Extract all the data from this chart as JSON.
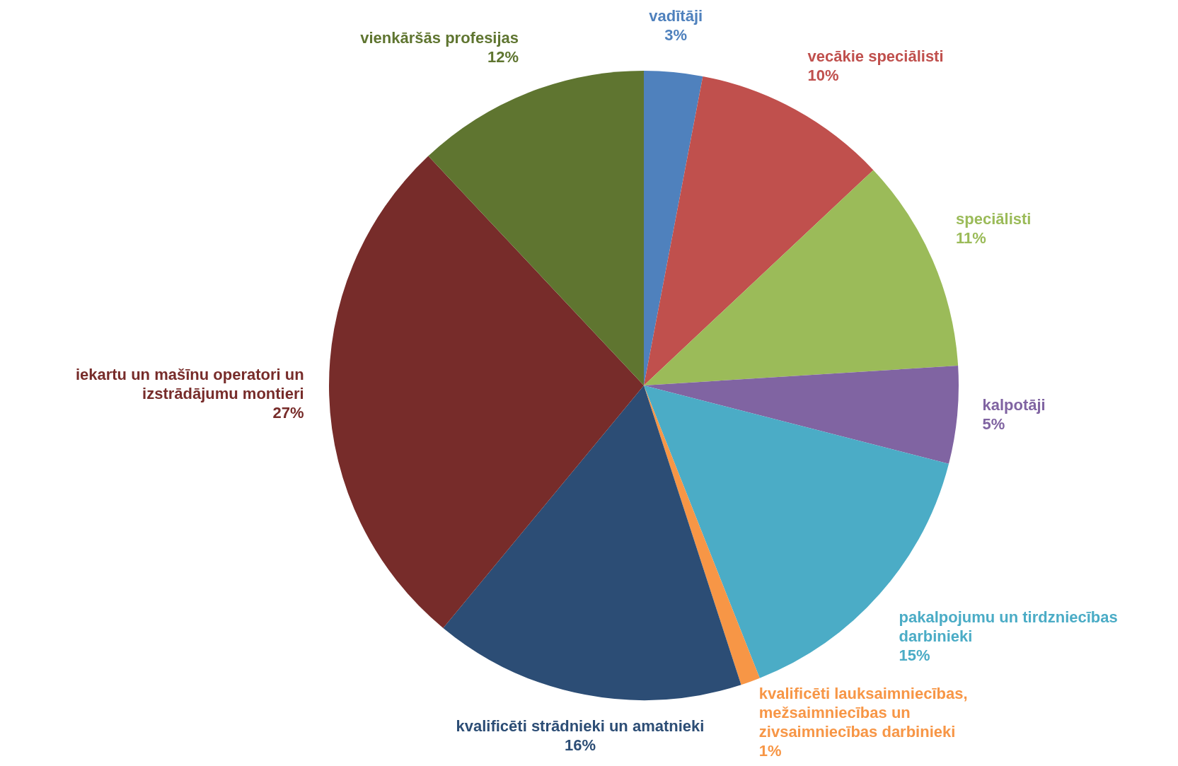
{
  "chart_data": {
    "type": "pie",
    "categories": [
      "vadītāji",
      "vecākie speciālisti",
      "speciālisti",
      "kalpotāji",
      "pakalpojumu un tirdzniecības darbinieki",
      "kvalificēti lauksaimniecības, mežsaimniecības un zivsaimniecības darbinieki",
      "kvalificēti strādnieki un amatnieki",
      "iekartu un mašīnu operatori un izstrādājumu montieri",
      "vienkāršās profesijas"
    ],
    "values": [
      3,
      10,
      11,
      5,
      15,
      1,
      16,
      27,
      12
    ],
    "value_labels": [
      "3%",
      "10%",
      "11%",
      "5%",
      "15%",
      "1%",
      "16%",
      "27%",
      "12%"
    ],
    "colors": [
      "#4f81bd",
      "#c0504d",
      "#9bbb59",
      "#8064a2",
      "#4bacc6",
      "#f79646",
      "#2c4d75",
      "#772c2a",
      "#5f7530"
    ],
    "legend": false
  }
}
